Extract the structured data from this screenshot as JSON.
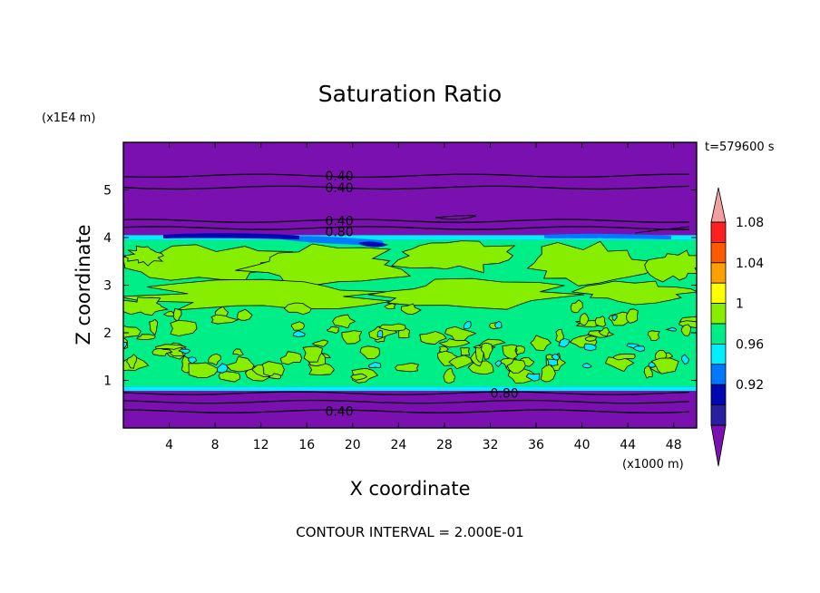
{
  "chart_data": {
    "type": "heatmap",
    "subtype": "filled-contour",
    "title": "Saturation Ratio",
    "xlabel": "X coordinate",
    "ylabel": "Z coordinate",
    "x_unit": "(x1000 m)",
    "y_unit": "(x1E4 m)",
    "xlim": [
      0,
      50
    ],
    "ylim": [
      0,
      6
    ],
    "x_ticks": [
      "4",
      "8",
      "12",
      "16",
      "20",
      "24",
      "28",
      "32",
      "36",
      "40",
      "44",
      "48"
    ],
    "y_ticks": [
      "1",
      "2",
      "3",
      "4",
      "5"
    ],
    "time_label": "t=579600 s",
    "footer": "CONTOUR INTERVAL = 2.000E-01",
    "contour_labels": [
      {
        "text": "0.40",
        "x": 17.6,
        "z": 5.3
      },
      {
        "text": "0.40",
        "x": 17.6,
        "z": 5.05
      },
      {
        "text": "0.40",
        "x": 17.6,
        "z": 4.35
      },
      {
        "text": "0.80",
        "x": 17.6,
        "z": 4.12
      },
      {
        "text": "0.80",
        "x": 32.0,
        "z": 0.73
      },
      {
        "text": "0.40",
        "x": 17.6,
        "z": 0.35
      }
    ],
    "colorbar": {
      "levels": [
        "0.92",
        "0.96",
        "1",
        "1.04",
        "1.08"
      ],
      "colors": [
        "#7a10b0",
        "#2820a0",
        "#0008b0",
        "#0078ff",
        "#00eeff",
        "#00ee88",
        "#88ee00",
        "#ffff00",
        "#ffa000",
        "#ff5a00",
        "#ff2020",
        "#f0a0a0"
      ]
    },
    "bands": [
      {
        "z_from": 0.0,
        "z_to": 0.78,
        "value": "< 0.92"
      },
      {
        "z_from": 0.78,
        "z_to": 0.87,
        "value": "0.96-1"
      },
      {
        "z_from": 0.87,
        "z_to": 2.6,
        "value": "0.96-1.04 mixed"
      },
      {
        "z_from": 2.6,
        "z_to": 3.95,
        "value": "1-1.04 mostly"
      },
      {
        "z_from": 3.95,
        "z_to": 4.12,
        "value": "0.92-1"
      },
      {
        "z_from": 4.12,
        "z_to": 6.0,
        "value": "< 0.92"
      }
    ]
  }
}
